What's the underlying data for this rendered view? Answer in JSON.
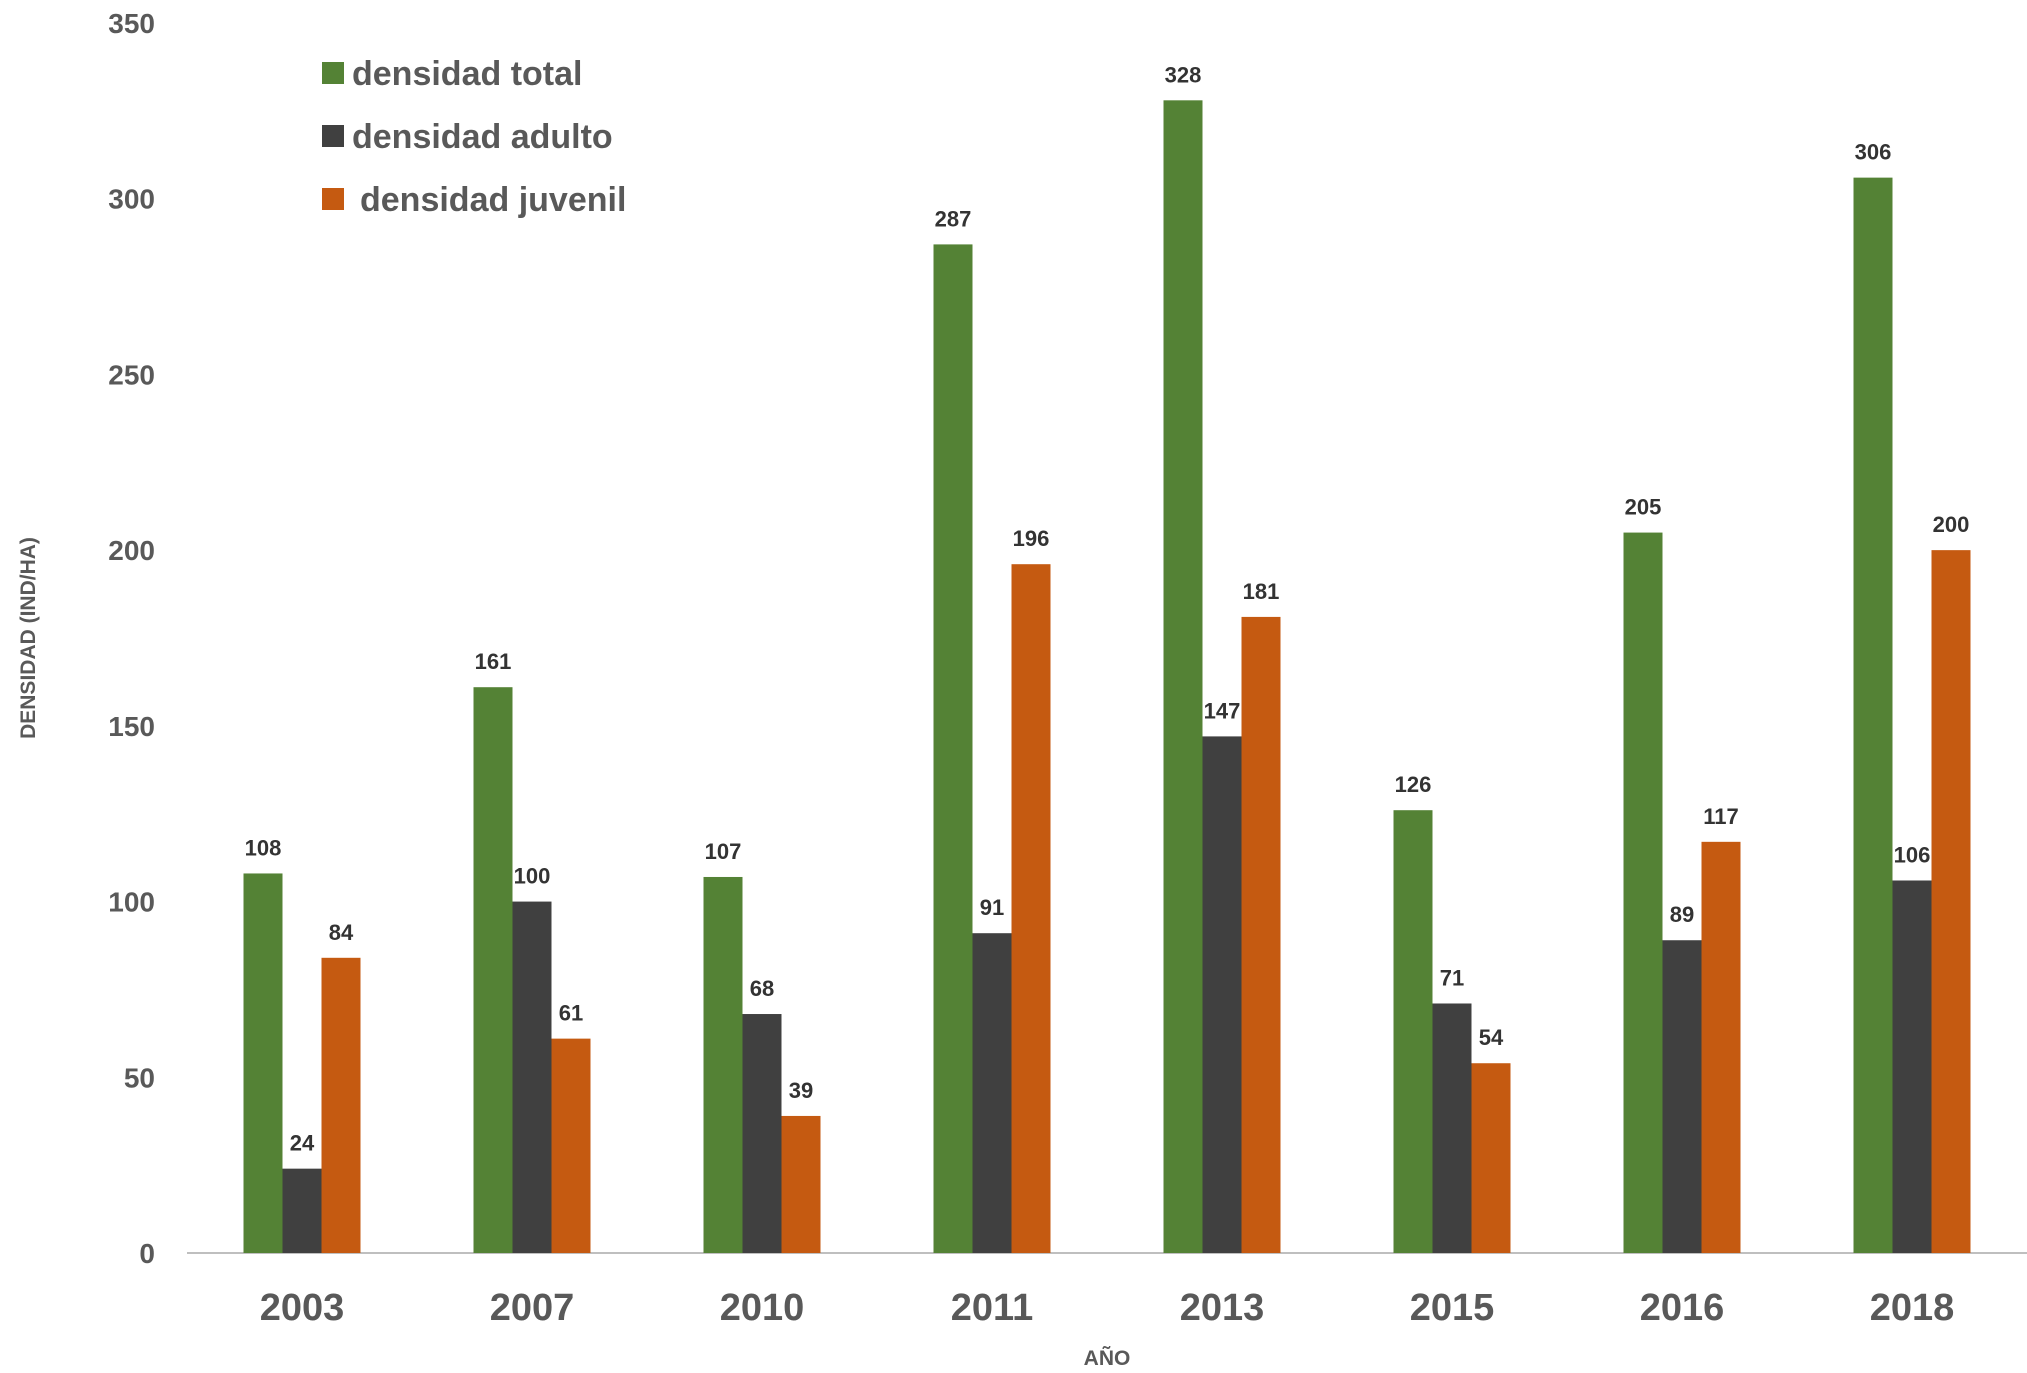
{
  "chart_data": {
    "type": "bar",
    "categories": [
      "2003",
      "2007",
      "2010",
      "2011",
      "2013",
      "2015",
      "2016",
      "2018"
    ],
    "series": [
      {
        "name": "densidad total",
        "color": "#548235",
        "values": [
          108,
          161,
          107,
          287,
          328,
          126,
          205,
          306
        ]
      },
      {
        "name": "densidad adulto",
        "color": "#404040",
        "values": [
          24,
          100,
          68,
          91,
          147,
          71,
          89,
          106
        ]
      },
      {
        "name": "densidad juvenil",
        "color": "#C55A11",
        "values": [
          84,
          61,
          39,
          196,
          181,
          54,
          117,
          200
        ]
      }
    ],
    "xlabel": "AÑO",
    "ylabel": "DENSIDAD (IND/HA)",
    "ylim": [
      0,
      350
    ],
    "yticks": [
      0,
      50,
      100,
      150,
      200,
      250,
      300,
      350
    ],
    "grid": false,
    "legend_position": "top-left",
    "data_labels": true
  }
}
